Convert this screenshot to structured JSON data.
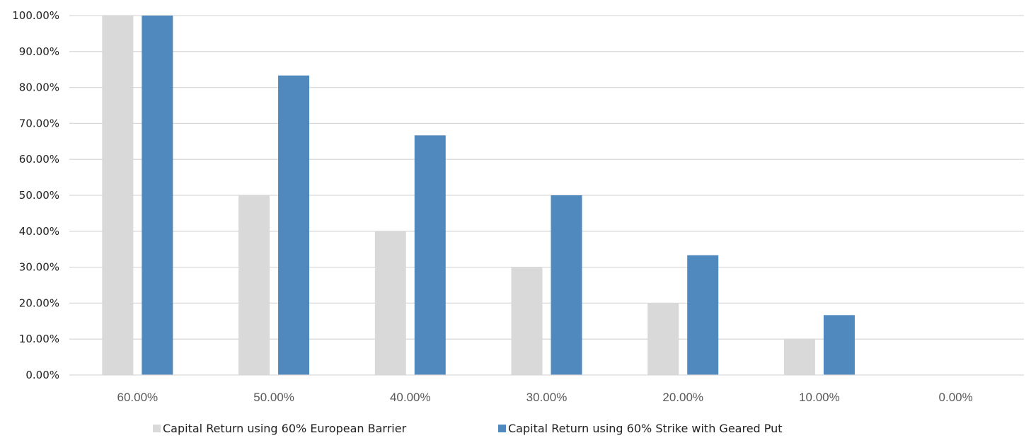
{
  "chart_data": {
    "type": "bar",
    "title": "",
    "xlabel": "",
    "ylabel": "",
    "categories": [
      "60.00%",
      "50.00%",
      "40.00%",
      "30.00%",
      "20.00%",
      "10.00%",
      "0.00%"
    ],
    "yticks": [
      "0.00%",
      "10.00%",
      "20.00%",
      "30.00%",
      "40.00%",
      "50.00%",
      "60.00%",
      "70.00%",
      "80.00%",
      "90.00%",
      "100.00%"
    ],
    "ylim": [
      0,
      100
    ],
    "grid": true,
    "legend_position": "bottom",
    "series": [
      {
        "name": "Capital Return using 60% European Barrier",
        "color": "#d9d9d9",
        "values": [
          100,
          50,
          40,
          30,
          20,
          10,
          0
        ]
      },
      {
        "name": "Capital Return using 60% Strike with Geared Put",
        "color": "#4f89bd",
        "values": [
          100,
          83.33,
          66.67,
          50,
          33.33,
          16.67,
          0
        ]
      }
    ]
  }
}
